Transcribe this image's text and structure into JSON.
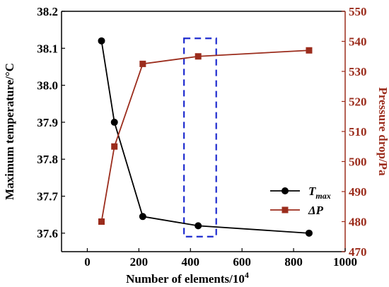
{
  "chart_data": {
    "type": "line",
    "xlabel": "Number of elements/10",
    "xlabel_sup": "4",
    "ylabel_left": "Maximum temperature/°C",
    "ylabel_right": "Pressure drop/Pa",
    "xlim": [
      -100,
      1000
    ],
    "ylim_left": [
      37.55,
      38.2
    ],
    "ylim_right": [
      470,
      550
    ],
    "x_ticks": [
      0,
      200,
      400,
      600,
      800,
      1000
    ],
    "y_left_ticks": [
      37.6,
      37.7,
      37.8,
      37.9,
      38.0,
      38.1,
      38.2
    ],
    "y_right_ticks": [
      470,
      480,
      490,
      500,
      510,
      520,
      530,
      540,
      550
    ],
    "series": [
      {
        "name_main": "T",
        "name_sub": "max",
        "axis": "left",
        "marker": "circle",
        "color": "#000000",
        "x": [
          55,
          105,
          215,
          430,
          860
        ],
        "y": [
          38.12,
          37.9,
          37.645,
          37.62,
          37.6
        ]
      },
      {
        "name_main": "ΔP",
        "name_sub": "",
        "axis": "right",
        "marker": "square",
        "color": "#9b2c1c",
        "x": [
          55,
          105,
          215,
          430,
          860
        ],
        "y": [
          480,
          505,
          532.5,
          535,
          537
        ]
      }
    ],
    "highlight_box": {
      "x": [
        375,
        500
      ],
      "y_right": [
        475,
        541
      ],
      "color": "#1f2ccf",
      "style": "dashed"
    },
    "legend_position": "lower-right",
    "grid": false
  }
}
